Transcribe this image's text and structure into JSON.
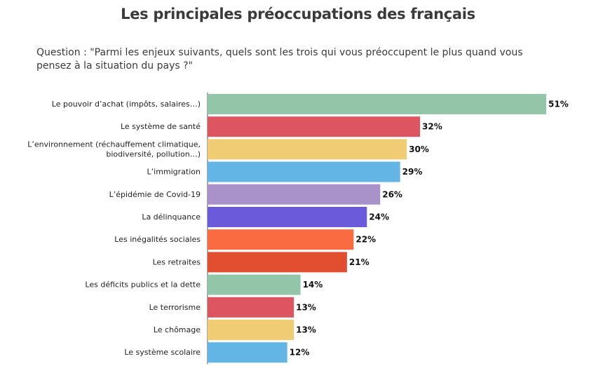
{
  "title": "Les principales préoccupations des français",
  "subtitle": "Question : \"Parmi les enjeux suivants, quels sont les trois qui vous préoccupent le plus quand vous pensez à la situation du pays ?\"",
  "chart_data": {
    "type": "bar",
    "orientation": "horizontal",
    "title": "Les principales préoccupations des français",
    "categories": [
      "Le pouvoir d’achat (impôts, salaires…)",
      "Le système de santé",
      "L’environnement (réchauffement climatique, biodiversité, pollution…)",
      "L’immigration",
      "L’épidémie de Covid-19",
      "La délinquance",
      "Les inégalités sociales",
      "Les retraites",
      "Les déficits publics et la dette",
      "Le terrorisme",
      "Le chômage",
      "Le système scolaire"
    ],
    "category_label_lines": [
      [
        "Le pouvoir d’achat (impôts, salaires…)"
      ],
      [
        "Le système de santé"
      ],
      [
        "L’environnement (réchauffement climatique,",
        "biodiversité, pollution…)"
      ],
      [
        "L’immigration"
      ],
      [
        "L’épidémie de Covid-19"
      ],
      [
        "La délinquance"
      ],
      [
        "Les inégalités sociales"
      ],
      [
        "Les retraites"
      ],
      [
        "Les déficits publics et la dette"
      ],
      [
        "Le terrorisme"
      ],
      [
        "Le chômage"
      ],
      [
        "Le système scolaire"
      ]
    ],
    "values": [
      51,
      32,
      30,
      29,
      26,
      24,
      22,
      21,
      14,
      13,
      13,
      12
    ],
    "value_labels": [
      "51%",
      "32%",
      "30%",
      "29%",
      "26%",
      "24%",
      "22%",
      "21%",
      "14%",
      "13%",
      "13%",
      "12%"
    ],
    "unit": "%",
    "colors": [
      "#93c5a8",
      "#dd5560",
      "#f0cd75",
      "#62b5e5",
      "#a992c9",
      "#6b5ad9",
      "#fb6b42",
      "#e24e30",
      "#93c5a8",
      "#dd5560",
      "#f0cd75",
      "#62b5e5"
    ],
    "xlim": [
      0,
      51
    ],
    "grid": false,
    "legend": "none"
  }
}
